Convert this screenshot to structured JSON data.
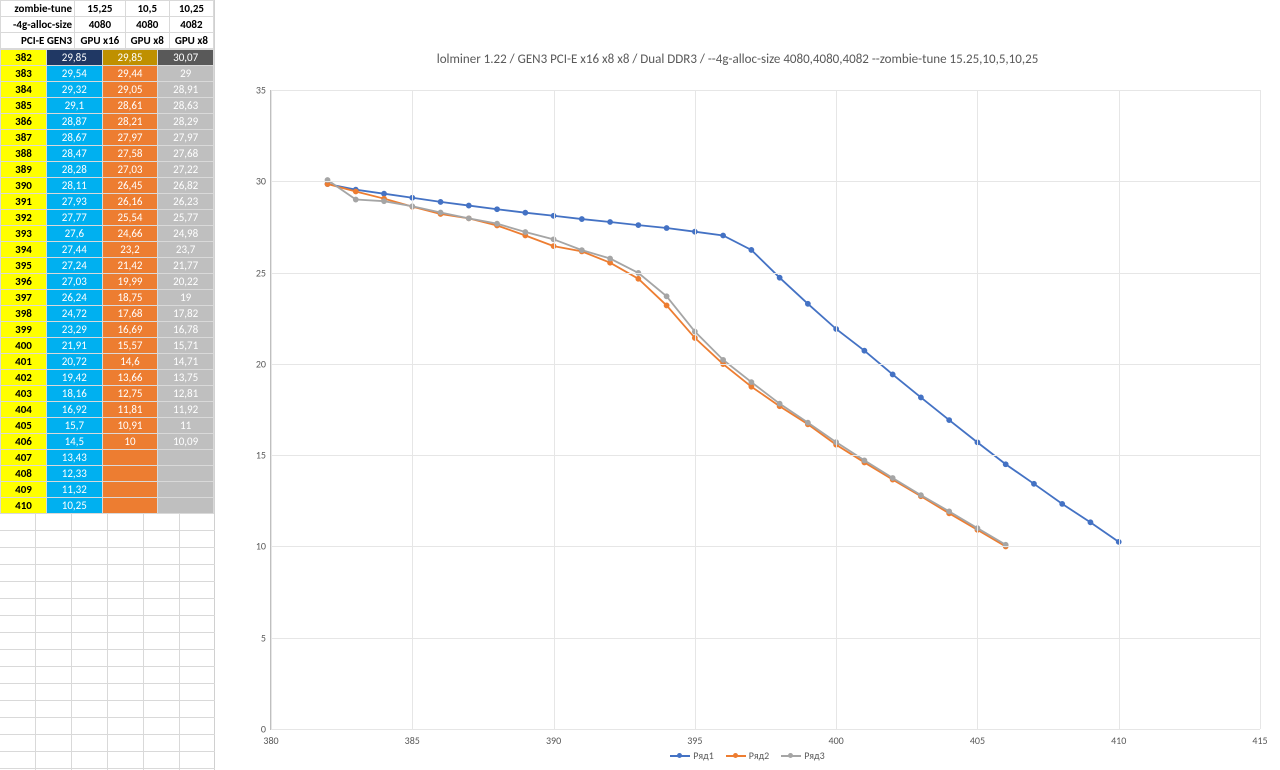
{
  "header_rows": [
    {
      "label": "zombie-tune",
      "v1": "15,25",
      "v2": "10,5",
      "v3": "10,25"
    },
    {
      "label": "-4g-alloc-size",
      "v1": "4080",
      "v2": "4080",
      "v3": "4082"
    },
    {
      "label": "PCI-E GEN3",
      "v1": "GPU x16",
      "v2": "GPU x8",
      "v3": "GPU x8"
    }
  ],
  "col_colors": {
    "idx": "#ffff00",
    "c1": "#00b0f0",
    "c2": "#ed7d31",
    "c3": "#bfbfbf"
  },
  "data_text_color": "#ffffff",
  "header_highlight": {
    "c1": "#203864",
    "c2": "#bf9000",
    "c3": "#595959"
  },
  "table_rows": [
    {
      "idx": 382,
      "c1": "29,85",
      "c2": "29,85",
      "c3": "30,07",
      "hl": true
    },
    {
      "idx": 383,
      "c1": "29,54",
      "c2": "29,44",
      "c3": "29"
    },
    {
      "idx": 384,
      "c1": "29,32",
      "c2": "29,05",
      "c3": "28,91"
    },
    {
      "idx": 385,
      "c1": "29,1",
      "c2": "28,61",
      "c3": "28,63"
    },
    {
      "idx": 386,
      "c1": "28,87",
      "c2": "28,21",
      "c3": "28,29"
    },
    {
      "idx": 387,
      "c1": "28,67",
      "c2": "27,97",
      "c3": "27,97"
    },
    {
      "idx": 388,
      "c1": "28,47",
      "c2": "27,58",
      "c3": "27,68"
    },
    {
      "idx": 389,
      "c1": "28,28",
      "c2": "27,03",
      "c3": "27,22"
    },
    {
      "idx": 390,
      "c1": "28,11",
      "c2": "26,45",
      "c3": "26,82"
    },
    {
      "idx": 391,
      "c1": "27,93",
      "c2": "26,16",
      "c3": "26,23"
    },
    {
      "idx": 392,
      "c1": "27,77",
      "c2": "25,54",
      "c3": "25,77"
    },
    {
      "idx": 393,
      "c1": "27,6",
      "c2": "24,66",
      "c3": "24,98"
    },
    {
      "idx": 394,
      "c1": "27,44",
      "c2": "23,2",
      "c3": "23,7"
    },
    {
      "idx": 395,
      "c1": "27,24",
      "c2": "21,42",
      "c3": "21,77"
    },
    {
      "idx": 396,
      "c1": "27,03",
      "c2": "19,99",
      "c3": "20,22"
    },
    {
      "idx": 397,
      "c1": "26,24",
      "c2": "18,75",
      "c3": "19"
    },
    {
      "idx": 398,
      "c1": "24,72",
      "c2": "17,68",
      "c3": "17,82"
    },
    {
      "idx": 399,
      "c1": "23,29",
      "c2": "16,69",
      "c3": "16,78"
    },
    {
      "idx": 400,
      "c1": "21,91",
      "c2": "15,57",
      "c3": "15,71"
    },
    {
      "idx": 401,
      "c1": "20,72",
      "c2": "14,6",
      "c3": "14,71"
    },
    {
      "idx": 402,
      "c1": "19,42",
      "c2": "13,66",
      "c3": "13,75"
    },
    {
      "idx": 403,
      "c1": "18,16",
      "c2": "12,75",
      "c3": "12,81"
    },
    {
      "idx": 404,
      "c1": "16,92",
      "c2": "11,81",
      "c3": "11,92"
    },
    {
      "idx": 405,
      "c1": "15,7",
      "c2": "10,91",
      "c3": "11"
    },
    {
      "idx": 406,
      "c1": "14,5",
      "c2": "10",
      "c3": "10,09"
    },
    {
      "idx": 407,
      "c1": "13,43",
      "c2": "",
      "c3": ""
    },
    {
      "idx": 408,
      "c1": "12,33",
      "c2": "",
      "c3": ""
    },
    {
      "idx": 409,
      "c1": "11,32",
      "c2": "",
      "c3": ""
    },
    {
      "idx": 410,
      "c1": "10,25",
      "c2": "",
      "c3": ""
    }
  ],
  "chart": {
    "title": "lolminer 1.22  / GEN3 PCI-E x16 x8 x8  / Dual DDR3 / --4g-alloc-size 4080,4080,4082 --zombie-tune 15.25,10,5,10,25",
    "xlim": [
      380,
      415
    ],
    "ylim": [
      0,
      35
    ],
    "xtick_step": 5,
    "ytick_step": 5,
    "grid_color": "#e6e6e6",
    "axis_color": "#bfbfbf",
    "background": "#ffffff",
    "title_fontsize": 13,
    "tick_fontsize": 10,
    "marker_radius": 2.4,
    "line_width": 1.8,
    "series": [
      {
        "name": "Ряд1",
        "color": "#4472c4",
        "x": [
          382,
          383,
          384,
          385,
          386,
          387,
          388,
          389,
          390,
          391,
          392,
          393,
          394,
          395,
          396,
          397,
          398,
          399,
          400,
          401,
          402,
          403,
          404,
          405,
          406,
          407,
          408,
          409,
          410
        ],
        "y": [
          29.85,
          29.54,
          29.32,
          29.1,
          28.87,
          28.67,
          28.47,
          28.28,
          28.11,
          27.93,
          27.77,
          27.6,
          27.44,
          27.24,
          27.03,
          26.24,
          24.72,
          23.29,
          21.91,
          20.72,
          19.42,
          18.16,
          16.92,
          15.7,
          14.5,
          13.43,
          12.33,
          11.32,
          10.25
        ]
      },
      {
        "name": "Ряд2",
        "color": "#ed7d31",
        "x": [
          382,
          383,
          384,
          385,
          386,
          387,
          388,
          389,
          390,
          391,
          392,
          393,
          394,
          395,
          396,
          397,
          398,
          399,
          400,
          401,
          402,
          403,
          404,
          405,
          406
        ],
        "y": [
          29.85,
          29.44,
          29.05,
          28.61,
          28.21,
          27.97,
          27.58,
          27.03,
          26.45,
          26.16,
          25.54,
          24.66,
          23.2,
          21.42,
          19.99,
          18.75,
          17.68,
          16.69,
          15.57,
          14.6,
          13.66,
          12.75,
          11.81,
          10.91,
          10
        ]
      },
      {
        "name": "Ряд3",
        "color": "#a5a5a5",
        "x": [
          382,
          383,
          384,
          385,
          386,
          387,
          388,
          389,
          390,
          391,
          392,
          393,
          394,
          395,
          396,
          397,
          398,
          399,
          400,
          401,
          402,
          403,
          404,
          405,
          406
        ],
        "y": [
          30.07,
          29,
          28.91,
          28.63,
          28.29,
          27.97,
          27.68,
          27.22,
          26.82,
          26.23,
          25.77,
          24.98,
          23.7,
          21.77,
          20.22,
          19,
          17.82,
          16.78,
          15.71,
          14.71,
          13.75,
          12.81,
          11.92,
          11,
          10.09
        ]
      }
    ]
  },
  "legend_prefix": ""
}
